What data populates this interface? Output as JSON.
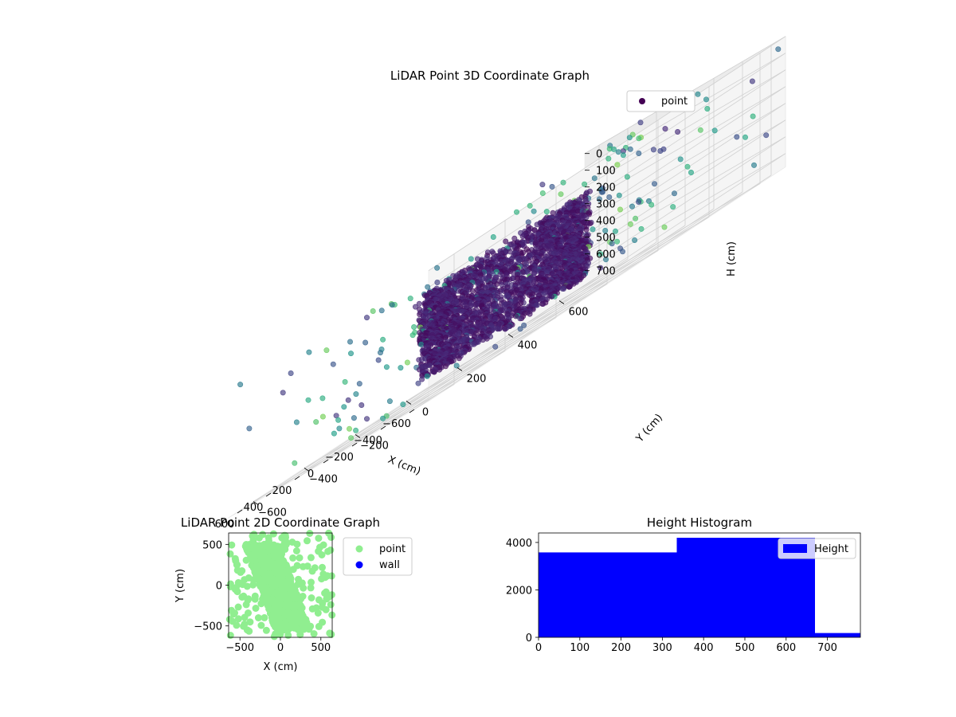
{
  "chart_data": [
    {
      "type": "scatter",
      "projection": "3d",
      "title": "LiDAR Point 3D Coordinate Graph",
      "xlabel": "X (cm)",
      "ylabel": "Y (cm)",
      "zlabel": "H (cm)",
      "xlim": [
        -700,
        700
      ],
      "ylim": [
        -700,
        700
      ],
      "zlim": [
        0,
        780
      ],
      "z_inverted": true,
      "xticks": [
        "−600",
        "−400",
        "−200",
        "0",
        "200",
        "400",
        "600"
      ],
      "yticks": [
        "−600",
        "−400",
        "−200",
        "0",
        "200",
        "400",
        "600"
      ],
      "zticks": [
        "0",
        "100",
        "200",
        "300",
        "400",
        "500",
        "600",
        "700"
      ],
      "grid": true,
      "legend": {
        "position": "top-right",
        "entries": [
          {
            "label": "point",
            "color": "#440154"
          }
        ]
      },
      "colormap": "viridis",
      "series": [
        {
          "name": "point",
          "shape": "ring",
          "center_x": -40,
          "center_y": -30,
          "radius": 280,
          "h_min": 180,
          "h_max": 680,
          "count": 2600,
          "color_note": "colored by distance (viridis)"
        },
        {
          "name": "point",
          "shape": "sparse",
          "x_range": [
            -700,
            700
          ],
          "y_range": [
            -700,
            700
          ],
          "h_range": [
            0,
            780
          ],
          "count": 220
        }
      ]
    },
    {
      "type": "scatter",
      "title": "LiDAR Point 2D Coordinate Graph",
      "xlabel": "X (cm)",
      "ylabel": "Y (cm)",
      "xlim": [
        -640,
        640
      ],
      "ylim": [
        -640,
        640
      ],
      "xticks": [
        -500,
        0,
        500
      ],
      "yticks": [
        -500,
        0,
        500
      ],
      "grid": false,
      "legend": {
        "position": "right",
        "entries": [
          {
            "label": "point",
            "color": "#90ee90"
          },
          {
            "label": "wall",
            "color": "#0000ff"
          }
        ]
      },
      "series": [
        {
          "name": "point",
          "color": "#90ee90",
          "dense_region": {
            "x_range": [
              -350,
              250
            ],
            "y_range": [
              -550,
              500
            ]
          },
          "count": 1200
        },
        {
          "name": "wall",
          "color": "#0000ff",
          "count": 0
        }
      ]
    },
    {
      "type": "bar",
      "title": "Height Histogram",
      "xlabel": "",
      "ylabel": "",
      "xlim": [
        0,
        780
      ],
      "ylim": [
        0,
        4400
      ],
      "xticks": [
        0,
        100,
        200,
        300,
        400,
        500,
        600,
        700
      ],
      "yticks": [
        0,
        2000,
        4000
      ],
      "bins": [
        [
          0,
          335
        ],
        [
          335,
          670
        ],
        [
          670,
          780
        ]
      ],
      "values": [
        3580,
        4200,
        180
      ],
      "color": "#0000ff",
      "legend": {
        "position": "top-right",
        "entries": [
          {
            "label": "Height",
            "color": "#0000ff"
          }
        ]
      }
    }
  ]
}
